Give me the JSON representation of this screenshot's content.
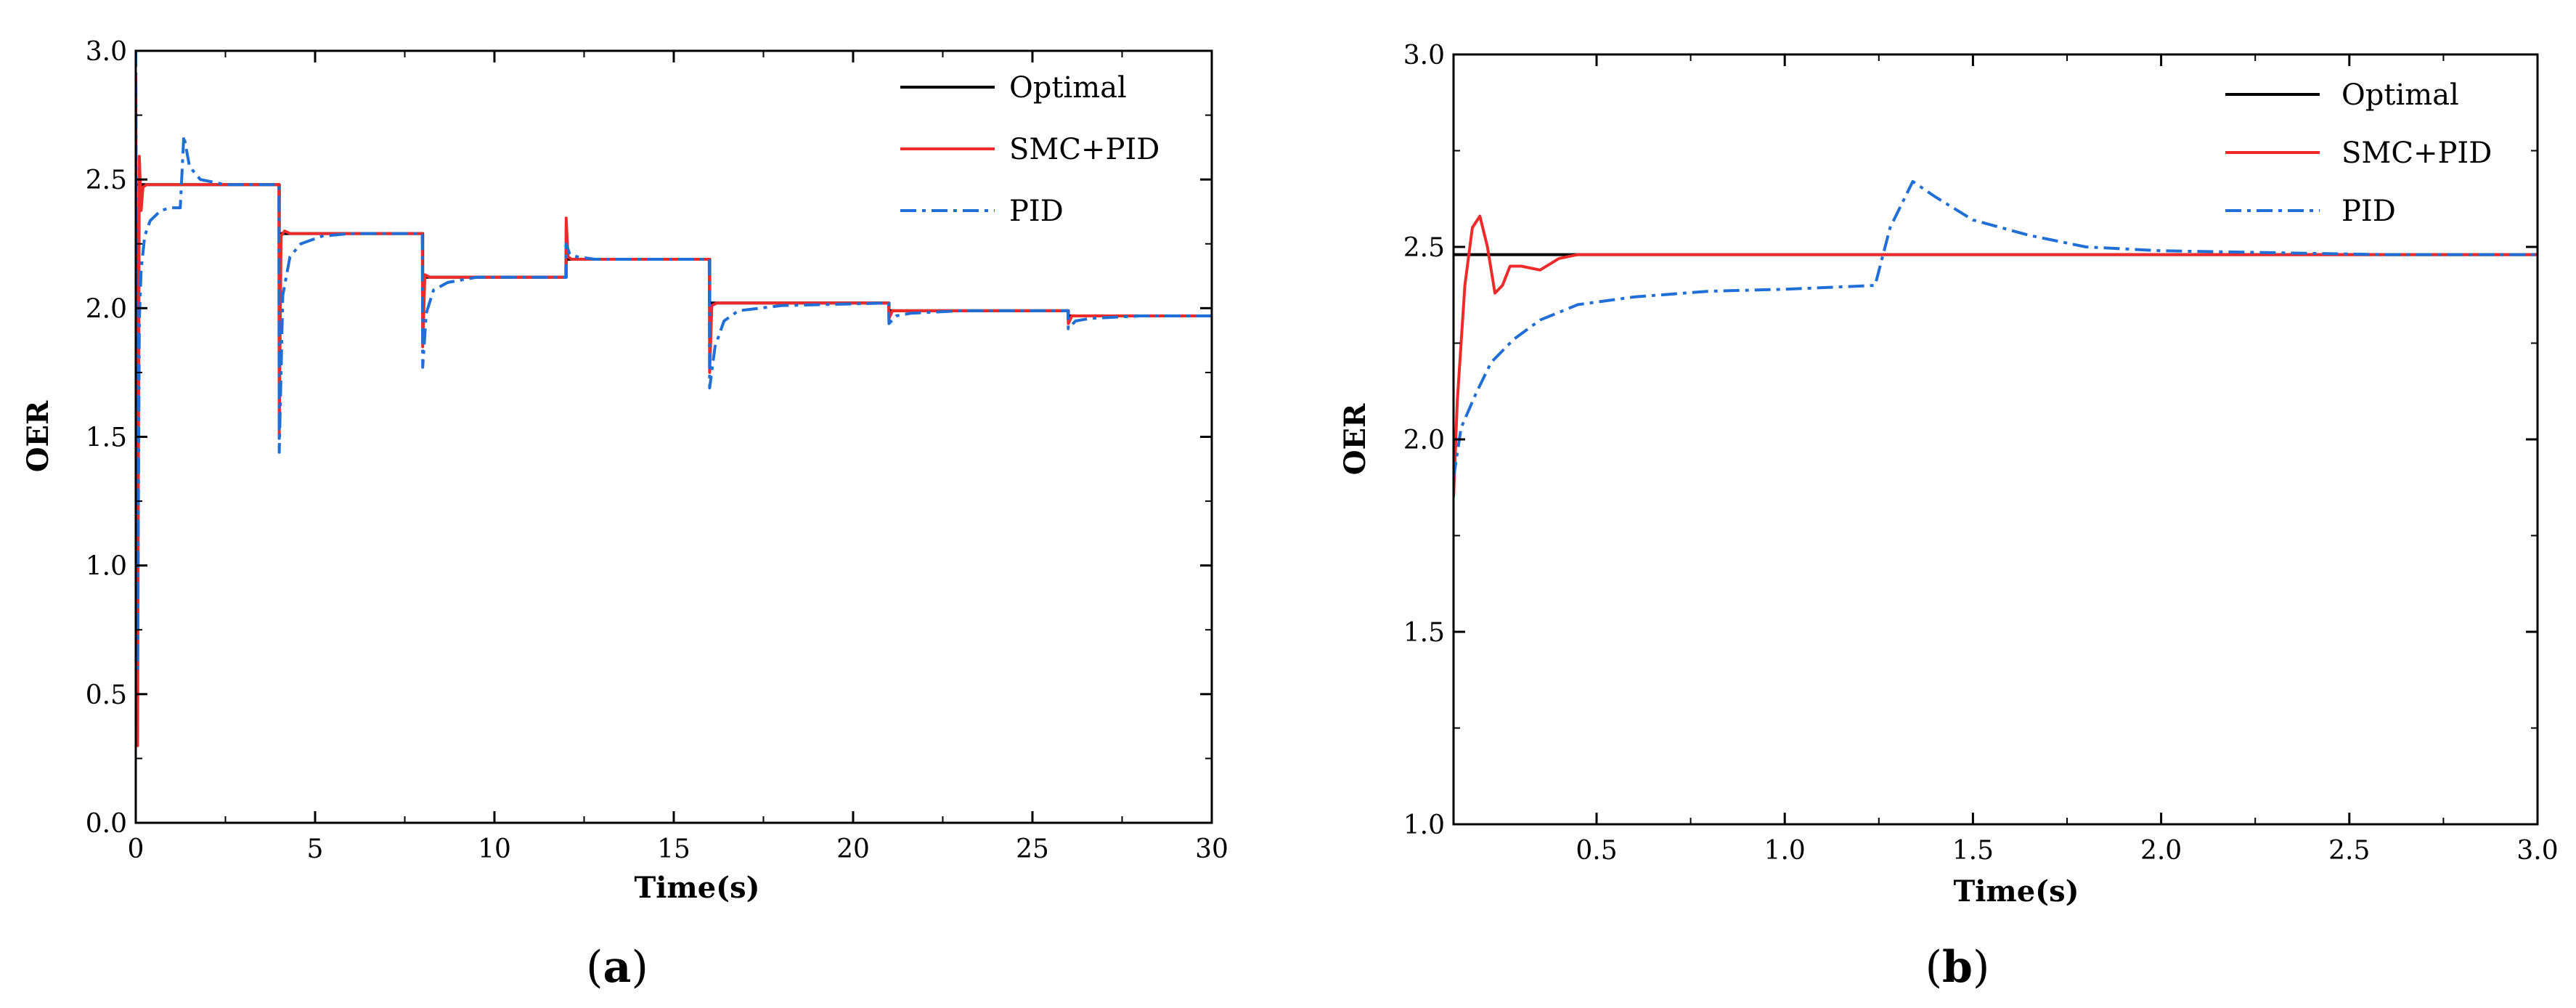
{
  "figure": {
    "colors": {
      "optimal": "#000000",
      "smc_pid": "#ee2a2a",
      "pid": "#1f6fd6",
      "axis": "#000000"
    }
  },
  "chart_data": [
    {
      "id": "a",
      "type": "line",
      "panel_label": {
        "open": "(",
        "letter": "a",
        "close": ")"
      },
      "xlabel": "Time(s)",
      "ylabel": "OER",
      "xlim": [
        0,
        30
      ],
      "ylim": [
        0.0,
        3.0
      ],
      "xticks": [
        0,
        5,
        10,
        15,
        20,
        25,
        30
      ],
      "xtick_labels": [
        "0",
        "5",
        "10",
        "15",
        "20",
        "25",
        "30"
      ],
      "yticks": [
        0.0,
        0.5,
        1.0,
        1.5,
        2.0,
        2.5,
        3.0
      ],
      "ytick_labels": [
        "0.0",
        "0.5",
        "1.0",
        "1.5",
        "2.0",
        "2.5",
        "3.0"
      ],
      "legend": {
        "placement": "top-right",
        "entries": [
          "Optimal",
          "SMC+PID",
          "PID"
        ]
      },
      "series": [
        {
          "name": "Optimal",
          "style": "solid",
          "color_key": "optimal",
          "x": [
            0,
            0.1,
            0.1,
            4.0,
            4.0,
            8.0,
            8.0,
            12.0,
            12.0,
            16.0,
            16.0,
            21.0,
            21.0,
            26.0,
            26.0,
            30.0
          ],
          "y": [
            2.48,
            2.48,
            2.48,
            2.48,
            2.29,
            2.29,
            2.12,
            2.12,
            2.19,
            2.19,
            2.02,
            2.02,
            1.99,
            1.99,
            1.97,
            1.97
          ]
        },
        {
          "name": "SMC+PID",
          "style": "solid",
          "color_key": "smc_pid",
          "x": [
            0,
            0.05,
            0.1,
            0.15,
            0.2,
            0.3,
            0.5,
            1.0,
            2.0,
            3.0,
            3.99,
            4.0,
            4.05,
            4.15,
            4.3,
            5.0,
            6.0,
            7.99,
            8.0,
            8.06,
            8.2,
            8.5,
            9.5,
            11.0,
            11.99,
            12.0,
            12.05,
            12.15,
            12.3,
            13.0,
            14.5,
            15.99,
            16.0,
            16.06,
            16.2,
            16.5,
            18.0,
            20.99,
            21.0,
            21.1,
            21.3,
            23.0,
            25.99,
            26.0,
            26.1,
            26.3,
            28.0,
            30.0
          ],
          "y": [
            2.9,
            0.3,
            2.59,
            2.38,
            2.47,
            2.48,
            2.48,
            2.48,
            2.48,
            2.48,
            2.48,
            1.5,
            2.28,
            2.3,
            2.29,
            2.29,
            2.29,
            2.29,
            1.85,
            2.13,
            2.12,
            2.12,
            2.12,
            2.12,
            2.12,
            2.35,
            2.2,
            2.19,
            2.19,
            2.19,
            2.19,
            2.19,
            1.75,
            2.01,
            2.02,
            2.02,
            2.02,
            2.02,
            1.96,
            1.99,
            1.99,
            1.99,
            1.99,
            1.94,
            1.97,
            1.97,
            1.97,
            1.97
          ]
        },
        {
          "name": "PID",
          "style": "dashdot",
          "color_key": "pid",
          "x": [
            0,
            0.05,
            0.1,
            0.15,
            0.25,
            0.4,
            0.7,
            1.0,
            1.24,
            1.34,
            1.5,
            1.8,
            2.5,
            3.99,
            4.0,
            4.1,
            4.3,
            4.6,
            5.2,
            6.0,
            7.99,
            8.0,
            8.1,
            8.3,
            8.7,
            9.5,
            11.99,
            12.0,
            12.1,
            12.3,
            12.8,
            14.0,
            15.99,
            16.0,
            16.15,
            16.4,
            16.8,
            18.0,
            20.99,
            21.0,
            21.2,
            21.6,
            23.0,
            25.99,
            26.0,
            26.2,
            26.6,
            28.0,
            30.0
          ],
          "y": [
            3.0,
            0.6,
            1.95,
            2.15,
            2.28,
            2.34,
            2.38,
            2.39,
            2.39,
            2.67,
            2.55,
            2.5,
            2.48,
            2.48,
            1.44,
            2.05,
            2.2,
            2.25,
            2.28,
            2.29,
            2.29,
            1.77,
            1.98,
            2.07,
            2.1,
            2.12,
            2.12,
            2.25,
            2.21,
            2.2,
            2.19,
            2.19,
            2.19,
            1.69,
            1.85,
            1.95,
            1.99,
            2.01,
            2.02,
            1.94,
            1.97,
            1.98,
            1.99,
            1.99,
            1.92,
            1.95,
            1.96,
            1.97,
            1.97
          ]
        }
      ]
    },
    {
      "id": "b",
      "type": "line",
      "panel_label": {
        "open": "(",
        "letter": "b",
        "close": ")"
      },
      "xlabel": "Time(s)",
      "ylabel": "OER",
      "xlim": [
        0.12,
        3.0
      ],
      "ylim": [
        1.0,
        3.0
      ],
      "xticks": [
        0.5,
        1.0,
        1.5,
        2.0,
        2.5,
        3.0
      ],
      "xtick_labels": [
        "0.5",
        "1.0",
        "1.5",
        "2.0",
        "2.5",
        "3.0"
      ],
      "yticks": [
        1.0,
        1.5,
        2.0,
        2.5,
        3.0
      ],
      "ytick_labels": [
        "1.0",
        "1.5",
        "2.0",
        "2.5",
        "3.0"
      ],
      "legend": {
        "placement": "top-right",
        "entries": [
          "Optimal",
          "SMC+PID",
          "PID"
        ]
      },
      "series": [
        {
          "name": "Optimal",
          "style": "solid",
          "color_key": "optimal",
          "x": [
            0.12,
            3.0
          ],
          "y": [
            2.48,
            2.48
          ]
        },
        {
          "name": "SMC+PID",
          "style": "solid",
          "color_key": "smc_pid",
          "x": [
            0.12,
            0.13,
            0.15,
            0.17,
            0.19,
            0.21,
            0.23,
            0.25,
            0.27,
            0.3,
            0.35,
            0.4,
            0.45,
            0.6,
            1.0,
            1.5,
            2.0,
            2.5,
            3.0
          ],
          "y": [
            1.85,
            2.1,
            2.4,
            2.55,
            2.58,
            2.5,
            2.38,
            2.4,
            2.45,
            2.45,
            2.44,
            2.47,
            2.48,
            2.48,
            2.48,
            2.48,
            2.48,
            2.48,
            2.48
          ]
        },
        {
          "name": "PID",
          "style": "dashdot",
          "color_key": "pid",
          "x": [
            0.12,
            0.14,
            0.18,
            0.22,
            0.28,
            0.35,
            0.45,
            0.6,
            0.8,
            1.0,
            1.24,
            1.28,
            1.34,
            1.4,
            1.5,
            1.65,
            1.8,
            2.0,
            2.3,
            2.6,
            3.0
          ],
          "y": [
            1.9,
            2.03,
            2.12,
            2.2,
            2.26,
            2.31,
            2.35,
            2.37,
            2.385,
            2.39,
            2.4,
            2.55,
            2.67,
            2.63,
            2.57,
            2.53,
            2.5,
            2.49,
            2.485,
            2.48,
            2.48
          ]
        }
      ]
    }
  ]
}
